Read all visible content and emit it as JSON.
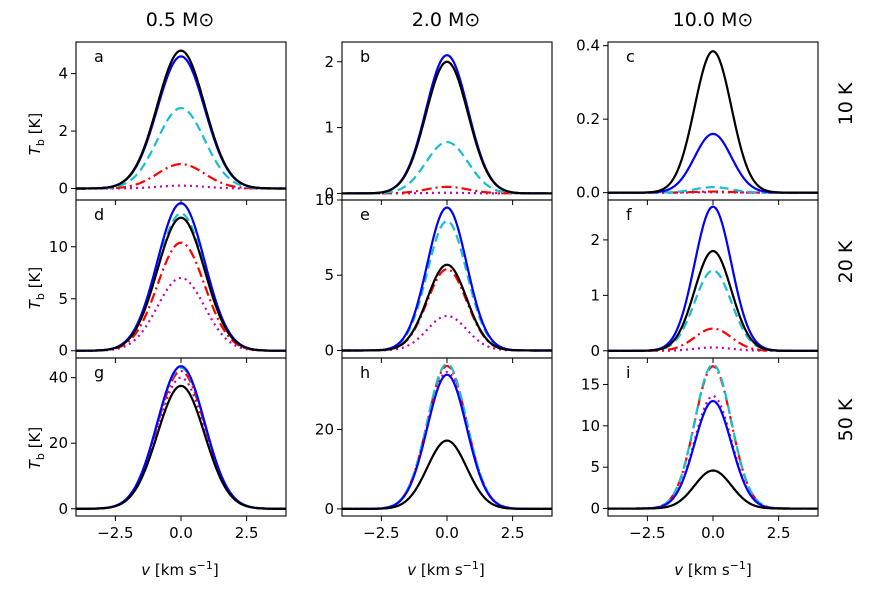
{
  "figure": {
    "column_titles": [
      "0.5 M⊙",
      "2.0 M⊙",
      "10.0 M⊙"
    ],
    "row_labels": [
      "10 K",
      "20 K",
      "50 K"
    ],
    "ylabel": "T_b [K]",
    "xlabel": "v [km s⁻¹]"
  },
  "chart_data": [
    {
      "type": "line",
      "panel": "a",
      "mass": "0.5 M⊙",
      "temperature": "10 K",
      "xlim": [
        -4,
        4
      ],
      "ylim": [
        -0.4,
        5.1
      ],
      "yticks": [
        0,
        2,
        4
      ],
      "xticks": [
        -2.5,
        0.0,
        2.5
      ],
      "sigma": 0.9,
      "series": [
        {
          "name": "black",
          "color": "#000000",
          "style": "solid",
          "peak": 4.8
        },
        {
          "name": "blue",
          "color": "#0000ff",
          "style": "solid",
          "peak": 4.6
        },
        {
          "name": "cyan",
          "color": "#17becf",
          "style": "dashed",
          "peak": 2.8
        },
        {
          "name": "red",
          "color": "#ff0000",
          "style": "dashdot",
          "peak": 0.85
        },
        {
          "name": "magenta",
          "color": "#bf00bf",
          "style": "dotted",
          "peak": 0.1
        }
      ]
    },
    {
      "type": "line",
      "panel": "b",
      "mass": "2.0 M⊙",
      "temperature": "10 K",
      "xlim": [
        -4,
        4
      ],
      "ylim": [
        -0.1,
        2.3
      ],
      "yticks": [
        0,
        1,
        2
      ],
      "xticks": [
        -2.5,
        0.0,
        2.5
      ],
      "sigma": 0.8,
      "series": [
        {
          "name": "black",
          "color": "#000000",
          "style": "solid",
          "peak": 2.0
        },
        {
          "name": "blue",
          "color": "#0000ff",
          "style": "solid",
          "peak": 2.1
        },
        {
          "name": "cyan",
          "color": "#17becf",
          "style": "dashed",
          "peak": 0.78
        },
        {
          "name": "red",
          "color": "#ff0000",
          "style": "dashdot",
          "peak": 0.1
        },
        {
          "name": "magenta",
          "color": "#bf00bf",
          "style": "dotted",
          "peak": 0.01
        }
      ]
    },
    {
      "type": "line",
      "panel": "c",
      "mass": "10.0 M⊙",
      "temperature": "10 K",
      "xlim": [
        -4,
        4
      ],
      "ylim": [
        -0.02,
        0.41
      ],
      "yticks": [
        0.0,
        0.2,
        0.4
      ],
      "xticks": [
        -2.5,
        0.0,
        2.5
      ],
      "sigma": 0.7,
      "series": [
        {
          "name": "black",
          "color": "#000000",
          "style": "solid",
          "peak": 0.385
        },
        {
          "name": "blue",
          "color": "#0000ff",
          "style": "solid",
          "peak": 0.16
        },
        {
          "name": "cyan",
          "color": "#17becf",
          "style": "dashed",
          "peak": 0.015
        },
        {
          "name": "red",
          "color": "#ff0000",
          "style": "dashdot",
          "peak": 0.003
        },
        {
          "name": "magenta",
          "color": "#bf00bf",
          "style": "dotted",
          "peak": 0.001
        }
      ]
    },
    {
      "type": "line",
      "panel": "d",
      "mass": "0.5 M⊙",
      "temperature": "20 K",
      "xlim": [
        -4,
        4
      ],
      "ylim": [
        -0.7,
        14.5
      ],
      "yticks": [
        0,
        5,
        10
      ],
      "xticks": [
        -2.5,
        0.0,
        2.5
      ],
      "sigma": 0.9,
      "series": [
        {
          "name": "black",
          "color": "#000000",
          "style": "solid",
          "peak": 12.8
        },
        {
          "name": "blue",
          "color": "#0000ff",
          "style": "solid",
          "peak": 14.2
        },
        {
          "name": "cyan",
          "color": "#17becf",
          "style": "dashed",
          "peak": 13.2
        },
        {
          "name": "red",
          "color": "#ff0000",
          "style": "dashdot",
          "peak": 10.4
        },
        {
          "name": "magenta",
          "color": "#bf00bf",
          "style": "dotted",
          "peak": 7.0
        }
      ]
    },
    {
      "type": "line",
      "panel": "e",
      "mass": "2.0 M⊙",
      "temperature": "20 K",
      "xlim": [
        -4,
        4
      ],
      "ylim": [
        -0.5,
        10.0
      ],
      "yticks": [
        0,
        5,
        10
      ],
      "xticks": [
        -2.5,
        0.0,
        2.5
      ],
      "sigma": 0.75,
      "series": [
        {
          "name": "black",
          "color": "#000000",
          "style": "solid",
          "peak": 5.7
        },
        {
          "name": "blue",
          "color": "#0000ff",
          "style": "solid",
          "peak": 9.5
        },
        {
          "name": "cyan",
          "color": "#17becf",
          "style": "dashed",
          "peak": 8.6
        },
        {
          "name": "red",
          "color": "#ff0000",
          "style": "dashdot",
          "peak": 5.4
        },
        {
          "name": "magenta",
          "color": "#bf00bf",
          "style": "dotted",
          "peak": 2.3
        }
      ]
    },
    {
      "type": "line",
      "panel": "f",
      "mass": "10.0 M⊙",
      "temperature": "20 K",
      "xlim": [
        -4,
        4
      ],
      "ylim": [
        -0.13,
        2.72
      ],
      "yticks": [
        0,
        1,
        2
      ],
      "xticks": [
        -2.5,
        0.0,
        2.5
      ],
      "sigma": 0.7,
      "series": [
        {
          "name": "black",
          "color": "#000000",
          "style": "solid",
          "peak": 1.8
        },
        {
          "name": "blue",
          "color": "#0000ff",
          "style": "solid",
          "peak": 2.6
        },
        {
          "name": "cyan",
          "color": "#17becf",
          "style": "dashed",
          "peak": 1.45
        },
        {
          "name": "red",
          "color": "#ff0000",
          "style": "dashdot",
          "peak": 0.4
        },
        {
          "name": "magenta",
          "color": "#bf00bf",
          "style": "dotted",
          "peak": 0.06
        }
      ]
    },
    {
      "type": "line",
      "panel": "g",
      "mass": "0.5 M⊙",
      "temperature": "50 K",
      "xlim": [
        -4,
        4
      ],
      "ylim": [
        -2.2,
        46.0
      ],
      "yticks": [
        0,
        20,
        40
      ],
      "xticks": [
        -2.5,
        0.0,
        2.5
      ],
      "sigma": 0.9,
      "series": [
        {
          "name": "black",
          "color": "#000000",
          "style": "solid",
          "peak": 37.5
        },
        {
          "name": "blue",
          "color": "#0000ff",
          "style": "solid",
          "peak": 43.5
        },
        {
          "name": "cyan",
          "color": "#17becf",
          "style": "dashed",
          "peak": 43.0
        },
        {
          "name": "red",
          "color": "#ff0000",
          "style": "dashdot",
          "peak": 42.0
        },
        {
          "name": "magenta",
          "color": "#bf00bf",
          "style": "dotted",
          "peak": 40.0
        }
      ]
    },
    {
      "type": "line",
      "panel": "h",
      "mass": "2.0 M⊙",
      "temperature": "50 K",
      "xlim": [
        -4,
        4
      ],
      "ylim": [
        -1.8,
        38.0
      ],
      "yticks": [
        0,
        20
      ],
      "xticks": [
        -2.5,
        0.0,
        2.5
      ],
      "sigma": 0.75,
      "series": [
        {
          "name": "black",
          "color": "#000000",
          "style": "solid",
          "peak": 17.2
        },
        {
          "name": "blue",
          "color": "#0000ff",
          "style": "solid",
          "peak": 33.8
        },
        {
          "name": "cyan",
          "color": "#17becf",
          "style": "dashed",
          "peak": 36.5
        },
        {
          "name": "red",
          "color": "#ff0000",
          "style": "dashdot",
          "peak": 36.0
        },
        {
          "name": "magenta",
          "color": "#bf00bf",
          "style": "dotted",
          "peak": 34.5
        }
      ]
    },
    {
      "type": "line",
      "panel": "i",
      "mass": "10.0 M⊙",
      "temperature": "50 K",
      "xlim": [
        -4,
        4
      ],
      "ylim": [
        -0.9,
        18.2
      ],
      "yticks": [
        0,
        5,
        10,
        15
      ],
      "xticks": [
        -2.5,
        0.0,
        2.5
      ],
      "sigma": 0.7,
      "series": [
        {
          "name": "black",
          "color": "#000000",
          "style": "solid",
          "peak": 4.6
        },
        {
          "name": "blue",
          "color": "#0000ff",
          "style": "solid",
          "peak": 13.0
        },
        {
          "name": "cyan",
          "color": "#17becf",
          "style": "dashed",
          "peak": 17.4
        },
        {
          "name": "red",
          "color": "#ff0000",
          "style": "dashdot",
          "peak": 17.2
        },
        {
          "name": "magenta",
          "color": "#bf00bf",
          "style": "dotted",
          "peak": 13.6
        }
      ]
    }
  ]
}
